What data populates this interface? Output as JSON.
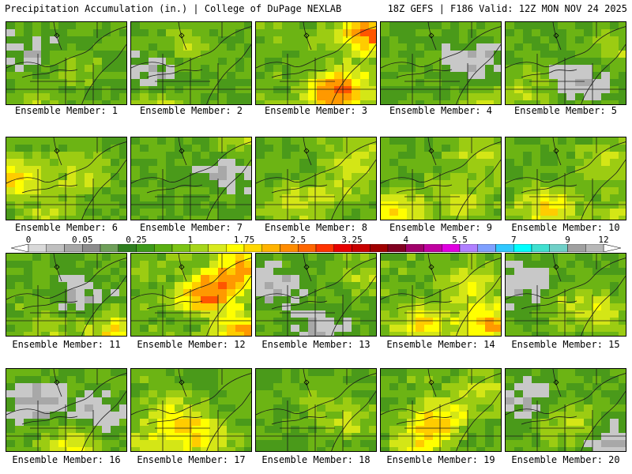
{
  "header": {
    "title": "Precipitation Accumulation (in.) | College of DuPage NEXLAB",
    "run_info": "18Z GEFS | F186 Valid: 12Z MON NOV 24 2025"
  },
  "colorbar": {
    "labels": [
      "0",
      "0.05",
      "0.25",
      "1",
      "1.75",
      "2.5",
      "3.25",
      "4",
      "5.5",
      "7",
      "9",
      "12"
    ],
    "colors": [
      "#d9d9d9",
      "#bfbfbf",
      "#a6a6a6",
      "#8c8c8c",
      "#6f9f5a",
      "#2f7f1f",
      "#3d9a1a",
      "#5aaf12",
      "#7cc415",
      "#a6d61b",
      "#d8ea1f",
      "#ffff00",
      "#ffd800",
      "#ffb300",
      "#ff8c00",
      "#ff6600",
      "#ff3300",
      "#e60000",
      "#c80000",
      "#a00000",
      "#800020",
      "#a0006a",
      "#c000a0",
      "#e000e0",
      "#b080ff",
      "#7fa0ff",
      "#30c8ff",
      "#00ffff",
      "#40e0d0",
      "#70d0c8",
      "#a0a0a0",
      "#b8b8b8"
    ]
  },
  "panels": [
    {
      "label": "Ensemble Member: 1",
      "intensity": 0.45,
      "blobs": [
        [
          0.15,
          0.35,
          -1
        ],
        [
          0.2,
          0.95,
          1
        ],
        [
          0.5,
          0.5,
          0.5
        ]
      ]
    },
    {
      "label": "Ensemble Member: 2",
      "intensity": 0.45,
      "blobs": [
        [
          0.2,
          0.55,
          -1
        ],
        [
          0.4,
          0.25,
          1
        ],
        [
          0.25,
          0.95,
          1
        ]
      ]
    },
    {
      "label": "Ensemble Member: 3",
      "intensity": 0.85,
      "blobs": [
        [
          0.9,
          0.1,
          3
        ],
        [
          0.7,
          0.7,
          2
        ],
        [
          0.55,
          0.9,
          2
        ]
      ]
    },
    {
      "label": "Ensemble Member: 4",
      "intensity": 0.35,
      "blobs": [
        [
          0.75,
          0.45,
          -1
        ],
        [
          0.85,
          0.9,
          1
        ]
      ]
    },
    {
      "label": "Ensemble Member: 5",
      "intensity": 0.4,
      "blobs": [
        [
          0.1,
          0.75,
          1
        ],
        [
          0.6,
          0.6,
          -1
        ],
        [
          0.85,
          0.3,
          1
        ]
      ]
    },
    {
      "label": "Ensemble Member: 6",
      "intensity": 0.6,
      "blobs": [
        [
          0.05,
          0.45,
          2
        ],
        [
          0.3,
          0.9,
          1
        ],
        [
          0.55,
          0.4,
          1
        ]
      ]
    },
    {
      "label": "Ensemble Member: 7",
      "intensity": 0.3,
      "blobs": [
        [
          0.8,
          0.35,
          -1
        ],
        [
          0.9,
          0.1,
          1
        ]
      ]
    },
    {
      "label": "Ensemble Member: 8",
      "intensity": 0.55,
      "blobs": [
        [
          0.3,
          0.75,
          1.5
        ],
        [
          0.7,
          0.5,
          1
        ],
        [
          0.8,
          0.15,
          1
        ]
      ]
    },
    {
      "label": "Ensemble Member: 9",
      "intensity": 0.65,
      "blobs": [
        [
          0.1,
          0.85,
          2
        ],
        [
          0.6,
          0.7,
          1
        ],
        [
          0.8,
          0.2,
          1
        ]
      ]
    },
    {
      "label": "Ensemble Member: 10",
      "intensity": 0.55,
      "blobs": [
        [
          0.3,
          0.8,
          2
        ],
        [
          0.8,
          0.3,
          1
        ],
        [
          0.9,
          0.9,
          1
        ]
      ]
    },
    {
      "label": "Ensemble Member: 11",
      "intensity": 0.45,
      "blobs": [
        [
          0.55,
          0.45,
          -1
        ],
        [
          0.85,
          0.9,
          2
        ],
        [
          0.3,
          0.8,
          1
        ]
      ]
    },
    {
      "label": "Ensemble Member: 12",
      "intensity": 0.9,
      "blobs": [
        [
          0.6,
          0.45,
          3
        ],
        [
          0.85,
          0.15,
          2.5
        ],
        [
          0.9,
          0.9,
          2.5
        ]
      ]
    },
    {
      "label": "Ensemble Member: 13",
      "intensity": 0.35,
      "blobs": [
        [
          0.1,
          0.35,
          -1
        ],
        [
          0.5,
          0.85,
          -1
        ],
        [
          0.9,
          0.2,
          1
        ]
      ]
    },
    {
      "label": "Ensemble Member: 14",
      "intensity": 0.7,
      "blobs": [
        [
          0.3,
          0.8,
          2
        ],
        [
          0.85,
          0.8,
          2.5
        ],
        [
          0.7,
          0.35,
          1.5
        ]
      ]
    },
    {
      "label": "Ensemble Member: 15",
      "intensity": 0.45,
      "blobs": [
        [
          0.1,
          0.3,
          -1
        ],
        [
          0.55,
          0.6,
          1
        ],
        [
          0.85,
          0.7,
          1
        ]
      ]
    },
    {
      "label": "Ensemble Member: 16",
      "intensity": 0.5,
      "blobs": [
        [
          0.2,
          0.35,
          -1.5
        ],
        [
          0.7,
          0.45,
          -1
        ],
        [
          0.5,
          0.9,
          1.5
        ]
      ]
    },
    {
      "label": "Ensemble Member: 17",
      "intensity": 0.6,
      "blobs": [
        [
          0.3,
          0.5,
          1.5
        ],
        [
          0.55,
          0.75,
          2
        ],
        [
          0.15,
          0.9,
          1.5
        ]
      ]
    },
    {
      "label": "Ensemble Member: 18",
      "intensity": 0.35,
      "blobs": [
        [
          0.7,
          0.6,
          1
        ],
        [
          0.5,
          0.3,
          0.5
        ]
      ]
    },
    {
      "label": "Ensemble Member: 19",
      "intensity": 0.65,
      "blobs": [
        [
          0.45,
          0.55,
          2
        ],
        [
          0.3,
          0.85,
          1.5
        ],
        [
          0.8,
          0.25,
          1
        ]
      ]
    },
    {
      "label": "Ensemble Member: 20",
      "intensity": 0.45,
      "blobs": [
        [
          0.1,
          0.35,
          -1
        ],
        [
          0.5,
          0.6,
          1
        ],
        [
          0.85,
          0.8,
          -1
        ]
      ]
    }
  ]
}
